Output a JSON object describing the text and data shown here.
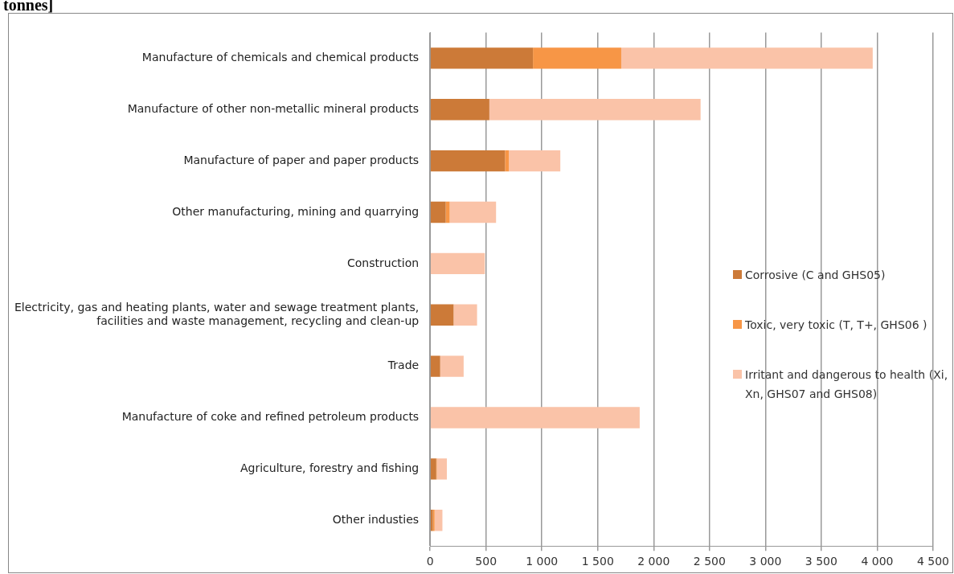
{
  "chart_data": {
    "type": "bar",
    "orientation": "horizontal",
    "stacked": true,
    "title": "tonnes]",
    "categories": [
      "Manufacture of chemicals and chemical products",
      "Manufacture of other non-metallic mineral products",
      "Manufacture of paper and paper products",
      "Other manufacturing, mining and quarrying",
      "Construction",
      "Electricity, gas and heating plants, water and sewage treatment plants, facilities and waste management, recycling and clean-up",
      "Trade",
      "Manufacture of coke and refined petroleum products",
      "Agriculture, forestry and fishing",
      "Other industies"
    ],
    "series": [
      {
        "name": "Corrosive (C and GHS05)",
        "color": "#cc7a38",
        "values": [
          920,
          530,
          670,
          140,
          null,
          210,
          90,
          null,
          55,
          25
        ]
      },
      {
        "name": "Toxic, very toxic (T, T+, GHS06 )",
        "color": "#f79646",
        "values": [
          790,
          null,
          35,
          35,
          null,
          null,
          null,
          null,
          5,
          15
        ]
      },
      {
        "name": "Irritant and dangerous to health (Xi, Xn, GHS07 and GHS08)",
        "color": "#fac3a8",
        "values": [
          2250,
          1890,
          460,
          415,
          490,
          210,
          210,
          1875,
          90,
          70
        ]
      }
    ],
    "xlim": [
      0,
      4500
    ],
    "xticks": [
      0,
      500,
      {
        "value": 1000,
        "label": "1 000"
      },
      {
        "value": 1500,
        "label": "1 500"
      },
      {
        "value": 2000,
        "label": "2 000"
      },
      {
        "value": 2500,
        "label": "2 500"
      },
      {
        "value": 3000,
        "label": "3 000"
      },
      {
        "value": 3500,
        "label": "3 500"
      },
      {
        "value": 4000,
        "label": "4 000"
      },
      {
        "value": 4500,
        "label": "4 500"
      }
    ],
    "grid": "x",
    "legend": "right"
  }
}
